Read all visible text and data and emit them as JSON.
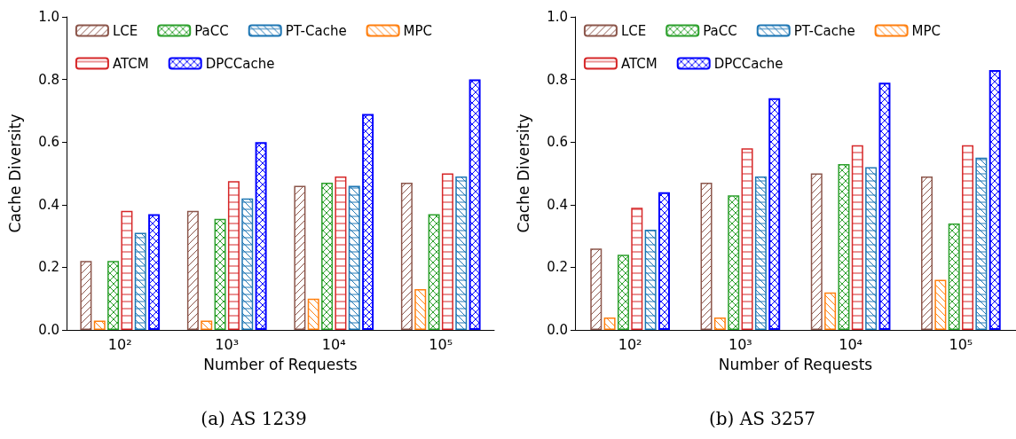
{
  "chart_data": [
    {
      "type": "bar",
      "xlabel": "Number of Requests",
      "ylabel": "Cache Diversity",
      "categories": [
        "10²",
        "10³",
        "10⁴",
        "10⁵"
      ],
      "series": [
        {
          "name": "LCE",
          "color": "#8c564b",
          "values": [
            0.22,
            0.38,
            0.46,
            0.47
          ]
        },
        {
          "name": "MPC",
          "color": "#ff7f0e",
          "values": [
            0.03,
            0.03,
            0.1,
            0.13
          ]
        },
        {
          "name": "PaCC",
          "color": "#2ca02c",
          "values": [
            0.22,
            0.355,
            0.47,
            0.37
          ]
        },
        {
          "name": "ATCM",
          "color": "#d62728",
          "values": [
            0.38,
            0.475,
            0.49,
            0.5
          ]
        },
        {
          "name": "PT-Cache",
          "color": "#1f77b4",
          "values": [
            0.31,
            0.42,
            0.46,
            0.49
          ]
        },
        {
          "name": "DPCCache",
          "color": "#0000ff",
          "values": [
            0.37,
            0.6,
            0.69,
            0.8
          ]
        }
      ],
      "ylim": [
        0,
        1
      ],
      "yticks": [
        {
          "value": 0,
          "label": "0.0"
        },
        {
          "value": 0.2,
          "label": "0.2"
        },
        {
          "value": 0.4,
          "label": "0.4"
        },
        {
          "value": 0.6,
          "label": "0.6"
        },
        {
          "value": 0.8,
          "label": "0.8"
        },
        {
          "value": 1,
          "label": "1.0"
        }
      ],
      "legend": "top",
      "grid": false,
      "annotations": [
        "(a) AS 1239"
      ]
    },
    {
      "type": "bar",
      "xlabel": "Number of Requests",
      "ylabel": "Cache Diversity",
      "categories": [
        "10²",
        "10³",
        "10⁴",
        "10⁵"
      ],
      "series": [
        {
          "name": "LCE",
          "color": "#8c564b",
          "values": [
            0.26,
            0.47,
            0.5,
            0.49
          ]
        },
        {
          "name": "MPC",
          "color": "#ff7f0e",
          "values": [
            0.04,
            0.04,
            0.12,
            0.16
          ]
        },
        {
          "name": "PaCC",
          "color": "#2ca02c",
          "values": [
            0.24,
            0.43,
            0.53,
            0.34
          ]
        },
        {
          "name": "ATCM",
          "color": "#d62728",
          "values": [
            0.39,
            0.58,
            0.59,
            0.59
          ]
        },
        {
          "name": "PT-Cache",
          "color": "#1f77b4",
          "values": [
            0.32,
            0.49,
            0.52,
            0.55
          ]
        },
        {
          "name": "DPCCache",
          "color": "#0000ff",
          "values": [
            0.44,
            0.74,
            0.79,
            0.83
          ]
        }
      ],
      "ylim": [
        0,
        1
      ],
      "yticks": [
        {
          "value": 0,
          "label": "0.0"
        },
        {
          "value": 0.2,
          "label": "0.2"
        },
        {
          "value": 0.4,
          "label": "0.4"
        },
        {
          "value": 0.6,
          "label": "0.6"
        },
        {
          "value": 0.8,
          "label": "0.8"
        },
        {
          "value": 1,
          "label": "1.0"
        }
      ],
      "legend": "top",
      "grid": false,
      "annotations": [
        "(b) AS 3257"
      ]
    }
  ]
}
